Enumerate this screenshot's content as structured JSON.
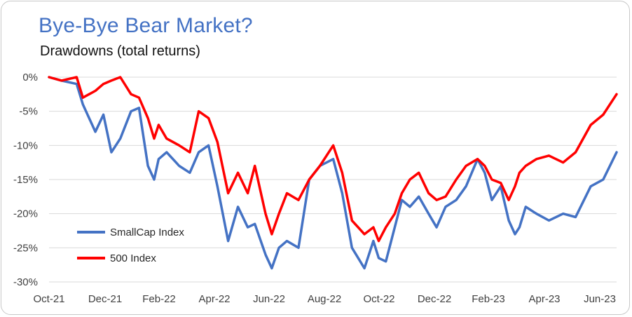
{
  "chart_data": {
    "type": "line",
    "title": "Bye-Bye Bear Market?",
    "subtitle": "Drawdowns (total returns)",
    "xlabel": "",
    "ylabel": "",
    "x_tick_labels": [
      "Oct-21",
      "Dec-21",
      "Feb-22",
      "Apr-22",
      "Jun-22",
      "Aug-22",
      "Oct-22",
      "Dec-22",
      "Feb-23",
      "Apr-23",
      "Jun-23"
    ],
    "y_tick_labels": [
      "0%",
      "-5%",
      "-10%",
      "-15%",
      "-20%",
      "-25%",
      "-30%"
    ],
    "ylim": [
      -30,
      0
    ],
    "grid": true,
    "legend_position": "bottom-left",
    "x": [
      "2021-10-01",
      "2021-10-15",
      "2021-11-01",
      "2021-11-08",
      "2021-11-22",
      "2021-12-01",
      "2021-12-10",
      "2021-12-20",
      "2022-01-01",
      "2022-01-10",
      "2022-01-20",
      "2022-01-27",
      "2022-02-01",
      "2022-02-10",
      "2022-02-24",
      "2022-03-08",
      "2022-03-18",
      "2022-03-29",
      "2022-04-08",
      "2022-04-20",
      "2022-05-01",
      "2022-05-12",
      "2022-05-20",
      "2022-06-01",
      "2022-06-08",
      "2022-06-16",
      "2022-06-25",
      "2022-07-08",
      "2022-07-20",
      "2022-08-01",
      "2022-08-16",
      "2022-08-26",
      "2022-09-06",
      "2022-09-20",
      "2022-09-30",
      "2022-10-06",
      "2022-10-14",
      "2022-10-24",
      "2022-11-01",
      "2022-11-10",
      "2022-11-20",
      "2022-12-01",
      "2022-12-10",
      "2022-12-20",
      "2023-01-01",
      "2023-01-12",
      "2023-01-25",
      "2023-02-02",
      "2023-02-10",
      "2023-02-20",
      "2023-03-01",
      "2023-03-08",
      "2023-03-13",
      "2023-03-20",
      "2023-04-01",
      "2023-04-15",
      "2023-05-01",
      "2023-05-15",
      "2023-06-01",
      "2023-06-15",
      "2023-06-30"
    ],
    "series": [
      {
        "name": "SmallCap Index",
        "color": "#4472c4",
        "values": [
          0,
          -0.5,
          -1,
          -4,
          -8,
          -5.5,
          -11,
          -9,
          -5,
          -4.5,
          -13,
          -15,
          -12,
          -11,
          -13,
          -14,
          -11,
          -10,
          -16,
          -24,
          -19,
          -22,
          -21.5,
          -26,
          -28,
          -25,
          -24,
          -25,
          -15,
          -13,
          -12,
          -17,
          -25,
          -28,
          -24,
          -26.5,
          -27,
          -22,
          -18,
          -19,
          -17.5,
          -20,
          -22,
          -19,
          -18,
          -16,
          -12,
          -14,
          -18,
          -16,
          -21,
          -23,
          -22,
          -19,
          -20,
          -21,
          -20,
          -20.5,
          -16,
          -15,
          -11
        ]
      },
      {
        "name": "500 Index",
        "color": "#ff0000",
        "values": [
          0,
          -0.5,
          0,
          -3,
          -2,
          -1,
          -0.5,
          0,
          -2.5,
          -3,
          -6,
          -9,
          -7,
          -9,
          -10,
          -11,
          -5,
          -6,
          -9.5,
          -17,
          -14,
          -17,
          -13,
          -20,
          -23,
          -20,
          -17,
          -18,
          -15,
          -13,
          -10,
          -14,
          -21,
          -23,
          -22,
          -24,
          -22,
          -20,
          -17,
          -15,
          -14,
          -17,
          -18,
          -17.5,
          -15,
          -13,
          -12,
          -13,
          -15,
          -15.5,
          -18,
          -16,
          -14,
          -13,
          -12,
          -11.5,
          -12.5,
          -11,
          -7,
          -5.5,
          -2.5
        ]
      }
    ]
  }
}
